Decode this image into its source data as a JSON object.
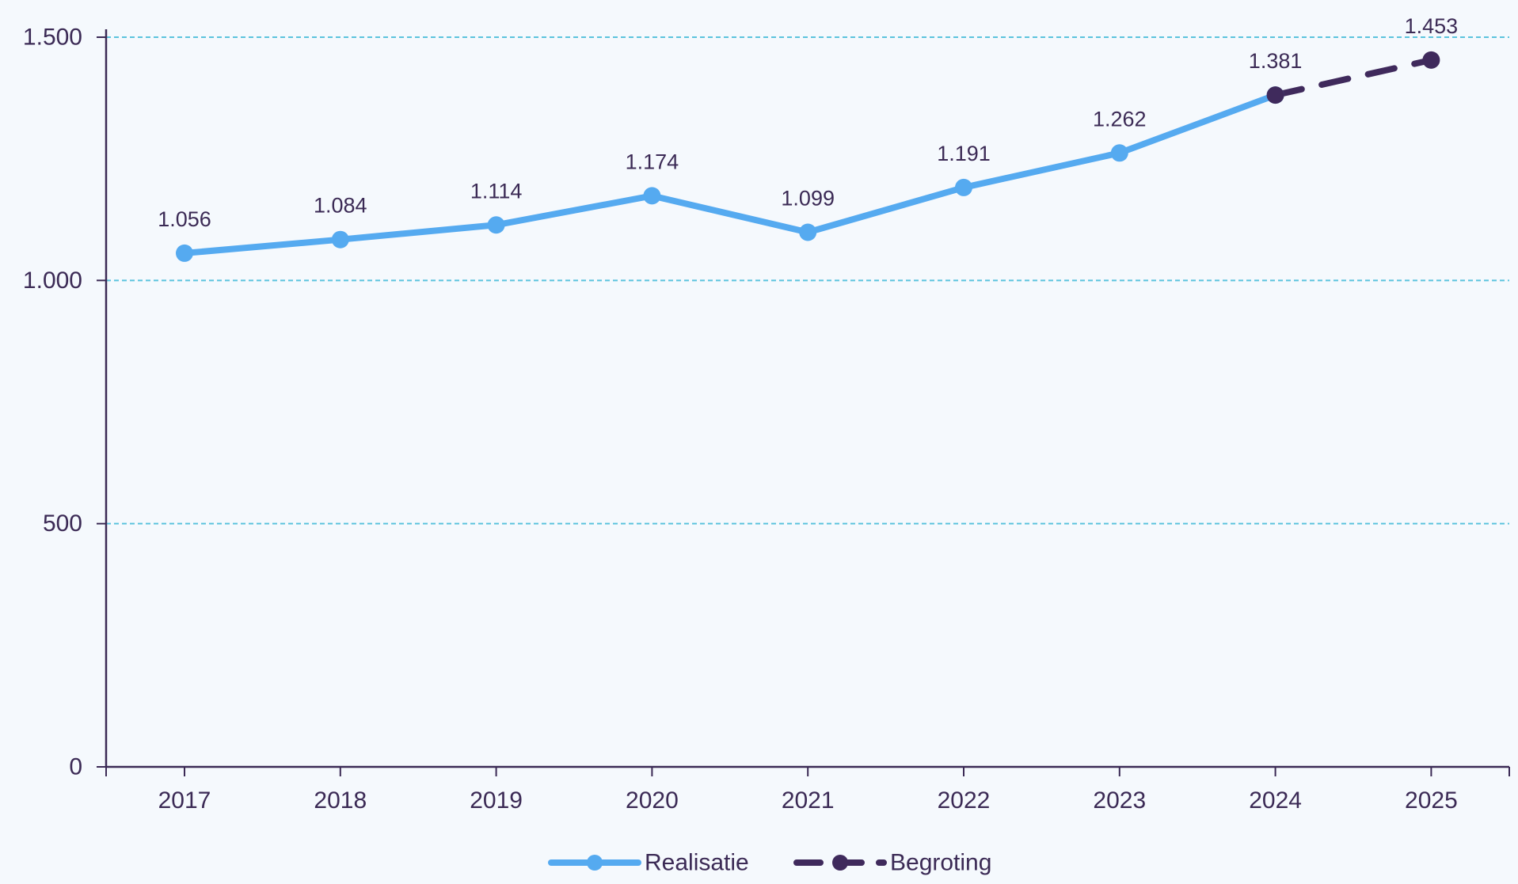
{
  "chart_data": {
    "type": "line",
    "title": "",
    "xlabel": "",
    "ylabel": "",
    "categories": [
      "2017",
      "2018",
      "2019",
      "2020",
      "2021",
      "2022",
      "2023",
      "2024",
      "2025"
    ],
    "ylim": [
      0,
      1500
    ],
    "y_ticks": [
      0,
      500,
      1000,
      1500
    ],
    "y_tick_labels": [
      "0",
      "500",
      "1.000",
      "1.500"
    ],
    "grid": true,
    "legend_position": "bottom",
    "series": [
      {
        "name": "Realisatie",
        "color": "#55aaf0",
        "style": "solid",
        "x": [
          "2017",
          "2018",
          "2019",
          "2020",
          "2021",
          "2022",
          "2023",
          "2024"
        ],
        "values": [
          1056,
          1084,
          1114,
          1174,
          1099,
          1191,
          1262,
          1381
        ],
        "labels": [
          "1.056",
          "1.084",
          "1.114",
          "1.174",
          "1.099",
          "1.191",
          "1.262",
          "1.381"
        ]
      },
      {
        "name": "Begroting",
        "color": "#3f2a5c",
        "style": "dashed",
        "x": [
          "2024",
          "2025"
        ],
        "values": [
          1381,
          1453
        ],
        "labels": [
          "",
          "1.453"
        ]
      }
    ]
  }
}
